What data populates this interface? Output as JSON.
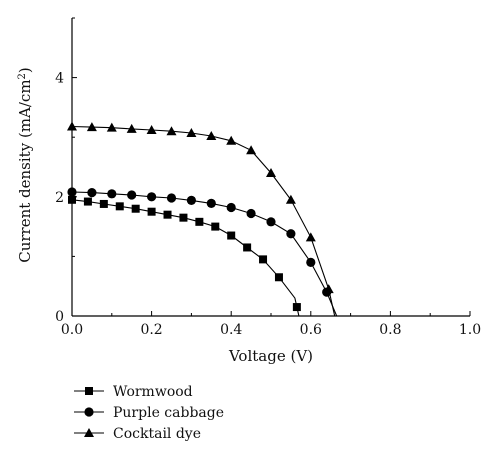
{
  "chart_data": {
    "type": "line",
    "xlabel": "Voltage (V)",
    "ylabel_main": "Current density (mA/cm",
    "ylabel_sup": "2",
    "ylabel_close": ")",
    "xlim": [
      0.0,
      1.0
    ],
    "ylim": [
      0,
      5
    ],
    "xticks": [
      0.0,
      0.2,
      0.4,
      0.6,
      0.8,
      1.0
    ],
    "xtick_labels": [
      "0.0",
      "0.2",
      "0.4",
      "0.6",
      "0.8",
      "1.0"
    ],
    "yticks": [
      0,
      2,
      4
    ],
    "ytick_labels": [
      "0",
      "2",
      "4"
    ],
    "grid": false,
    "legend_position": "bottom-left, below plot",
    "series": [
      {
        "name": "Wormwood",
        "marker": "square",
        "x": [
          0.0,
          0.04,
          0.08,
          0.12,
          0.16,
          0.2,
          0.24,
          0.28,
          0.32,
          0.36,
          0.4,
          0.44,
          0.48,
          0.52,
          0.56,
          0.565,
          0.57
        ],
        "y": [
          1.95,
          1.92,
          1.88,
          1.84,
          1.8,
          1.75,
          1.7,
          1.65,
          1.58,
          1.5,
          1.35,
          1.15,
          0.95,
          0.65,
          0.3,
          0.15,
          0.0
        ],
        "marker_indices": [
          0,
          1,
          2,
          3,
          4,
          5,
          6,
          7,
          8,
          9,
          10,
          11,
          12,
          13,
          15
        ]
      },
      {
        "name": "Purple cabbage",
        "marker": "circle",
        "x": [
          0.0,
          0.05,
          0.1,
          0.15,
          0.2,
          0.25,
          0.3,
          0.35,
          0.4,
          0.45,
          0.5,
          0.55,
          0.6,
          0.64,
          0.665
        ],
        "y": [
          2.08,
          2.07,
          2.05,
          2.03,
          2.0,
          1.98,
          1.94,
          1.89,
          1.82,
          1.72,
          1.58,
          1.38,
          0.9,
          0.4,
          0.0
        ],
        "marker_indices": [
          0,
          1,
          2,
          3,
          4,
          5,
          6,
          7,
          8,
          9,
          10,
          11,
          12,
          13
        ]
      },
      {
        "name": "Cocktail dye",
        "marker": "triangle",
        "x": [
          0.0,
          0.05,
          0.1,
          0.15,
          0.2,
          0.25,
          0.3,
          0.35,
          0.4,
          0.45,
          0.5,
          0.55,
          0.6,
          0.645,
          0.66
        ],
        "y": [
          3.18,
          3.17,
          3.16,
          3.14,
          3.12,
          3.1,
          3.07,
          3.02,
          2.94,
          2.78,
          2.4,
          1.95,
          1.32,
          0.45,
          0.0
        ],
        "marker_indices": [
          0,
          1,
          2,
          3,
          4,
          5,
          6,
          7,
          8,
          9,
          10,
          11,
          12,
          13
        ]
      }
    ]
  }
}
